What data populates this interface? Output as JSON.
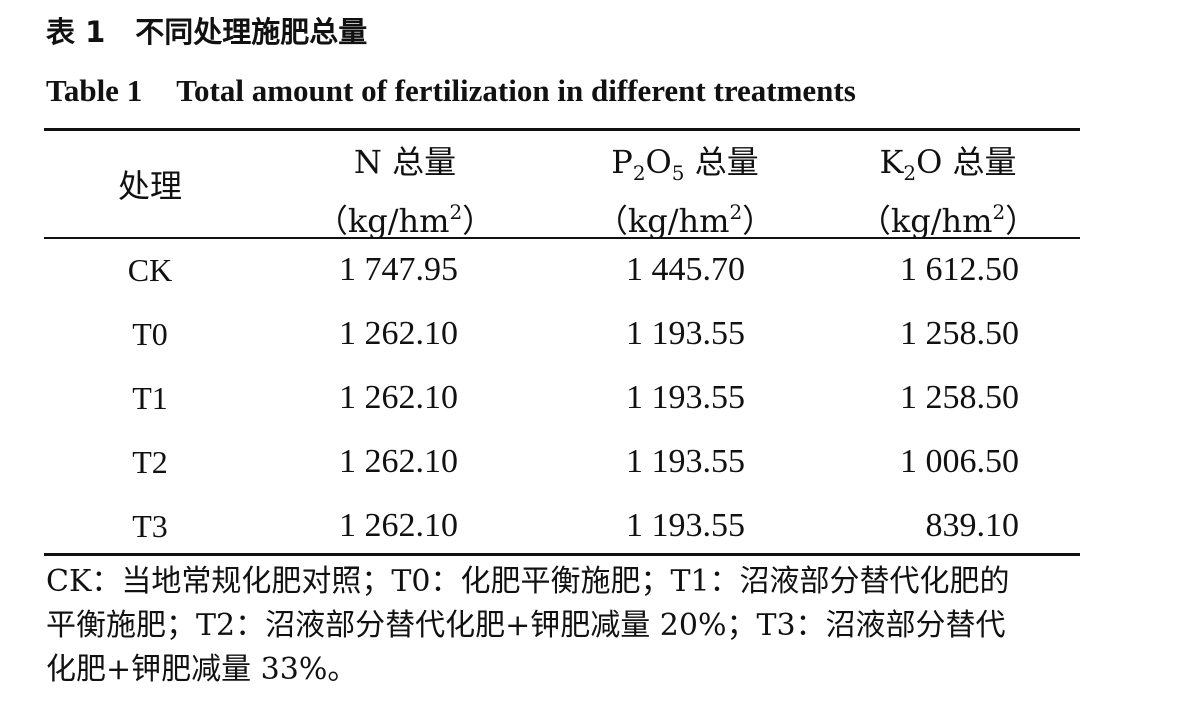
{
  "title_cn": {
    "label": "表 1",
    "text": "不同处理施肥总量"
  },
  "title_en": {
    "label": "Table 1",
    "text": "Total amount of fertilization in different treatments"
  },
  "table": {
    "headers": [
      {
        "text": "处理"
      },
      {
        "pre": "N 总量",
        "unit_open": "（kg/hm",
        "unit_sup": "2",
        "unit_close": "）"
      },
      {
        "p1": "P",
        "p1_sub": "2",
        "p2": "O",
        "p2_sub": "5",
        "rest": " 总量",
        "unit_open": "（kg/hm",
        "unit_sup": "2",
        "unit_close": "）"
      },
      {
        "p1": "K",
        "p1_sub": "2",
        "p2": "O",
        "rest": " 总量",
        "unit_open": "（kg/hm",
        "unit_sup": "2",
        "unit_close": "）"
      }
    ],
    "rows": [
      {
        "treatment": "CK",
        "n": "1 747.95",
        "p": "1 445.70",
        "k": "1 612.50"
      },
      {
        "treatment": "T0",
        "n": "1 262.10",
        "p": "1 193.55",
        "k": "1 258.50"
      },
      {
        "treatment": "T1",
        "n": "1 262.10",
        "p": "1 193.55",
        "k": "1 258.50"
      },
      {
        "treatment": "T2",
        "n": "1 262.10",
        "p": "1 193.55",
        "k": "1 006.50"
      },
      {
        "treatment": "T3",
        "n": "1 262.10",
        "p": "1 193.55",
        "k": "839.10"
      }
    ]
  },
  "note": {
    "line1": "CK：当地常规化肥对照；T0：化肥平衡施肥；T1：沼液部分替代化肥的",
    "line2": "平衡施肥；T2：沼液部分替代化肥+钾肥减量 20%；T3：沼液部分替代",
    "line3": "化肥+钾肥减量 33%。"
  }
}
